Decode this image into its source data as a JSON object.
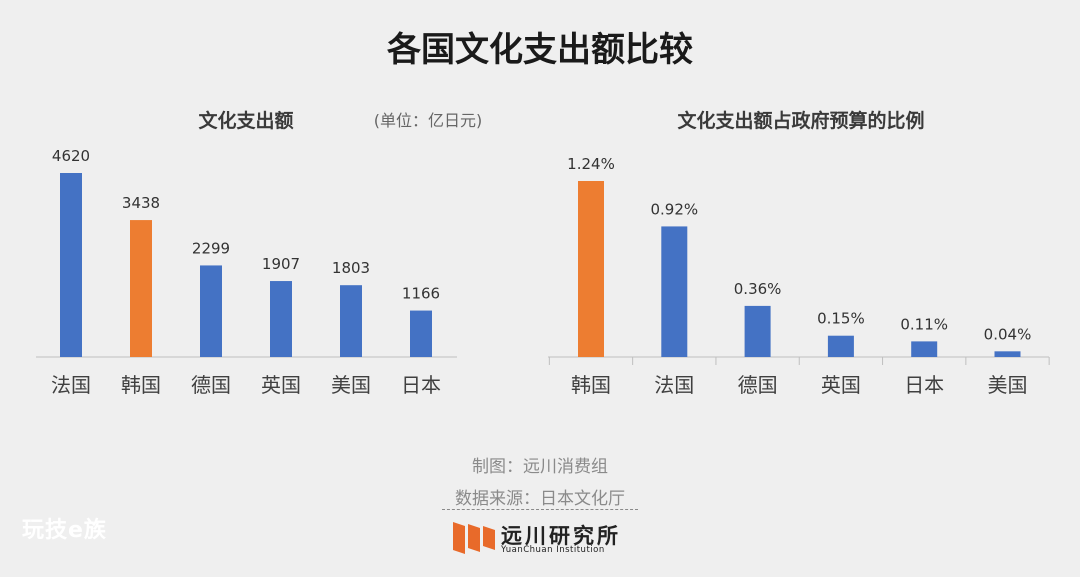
{
  "title": "各国文化支出额比较",
  "colors": {
    "blue": "#4472C4",
    "orange": "#ED7D31"
  },
  "chart_data": [
    {
      "type": "bar",
      "title": "文化支出额",
      "unit": "(单位：亿日元)",
      "categories": [
        "法国",
        "韩国",
        "德国",
        "英国",
        "美国",
        "日本"
      ],
      "values": [
        4620,
        3438,
        2299,
        1907,
        1803,
        1166
      ],
      "value_labels": [
        "4620",
        "3438",
        "2299",
        "1907",
        "1803",
        "1166"
      ],
      "highlight": [
        "韩国"
      ],
      "ylim": [
        0,
        4620
      ]
    },
    {
      "type": "bar",
      "title": "文化支出额占政府预算的比例",
      "unit": "",
      "categories": [
        "韩国",
        "法国",
        "德国",
        "英国",
        "日本",
        "美国"
      ],
      "values": [
        1.24,
        0.92,
        0.36,
        0.15,
        0.11,
        0.04
      ],
      "value_labels": [
        "1.24%",
        "0.92%",
        "0.36%",
        "0.15%",
        "0.11%",
        "0.04%"
      ],
      "highlight": [
        "韩国"
      ],
      "ylim": [
        0,
        1.24
      ]
    }
  ],
  "footer": {
    "maker": "制图：远川消费组",
    "source": "数据来源：日本文化厅"
  },
  "logo": {
    "cn": "远川研究所",
    "en": "YuanChuan Institution"
  },
  "watermark": "玩技e族"
}
